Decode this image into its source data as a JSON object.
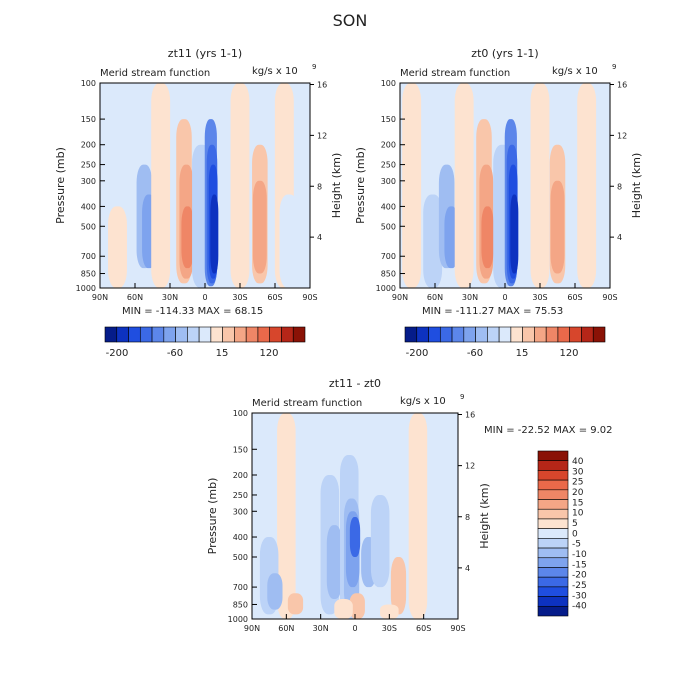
{
  "figure": {
    "title": "SON"
  },
  "palette": {
    "neg": [
      "#dbe9fb",
      "#bcd3f7",
      "#9fbdf2",
      "#7ea3ee",
      "#5c86ea",
      "#3b69e6",
      "#1f4ee0",
      "#0d32c0",
      "#051c8a"
    ],
    "pos": [
      "#fde3d0",
      "#f9c6aa",
      "#f4a686",
      "#ef8666",
      "#e9694a",
      "#d7462c",
      "#b52618",
      "#8a1206"
    ]
  },
  "chart_data": [
    {
      "type": "contour",
      "title": "zt11 (yrs 1-1)",
      "label_left": "Merid stream function",
      "label_right": "kg/s x 10",
      "label_right_exp": "9",
      "xlabel": "",
      "ylabel": "Pressure (mb)",
      "ylabel_right": "Height (km)",
      "x_ticks": [
        "90N",
        "60N",
        "30N",
        "0",
        "30S",
        "60S",
        "90S"
      ],
      "y_ticks": [
        "100",
        "150",
        "200",
        "250",
        "300",
        "400",
        "500",
        "700",
        "850",
        "1000"
      ],
      "y_ticks_right": [
        "16",
        "12",
        "8",
        "4"
      ],
      "stats": {
        "min_label": "MIN =",
        "min": "-114.33",
        "max_label": "MAX =",
        "max": "68.15"
      },
      "colorbar": {
        "orientation": "horizontal",
        "labels": [
          "-200",
          "-60",
          "15",
          "120"
        ]
      },
      "cells": [
        {
          "lat": 75,
          "p": [
            100,
            400
          ],
          "level": 0
        },
        {
          "lat": 75,
          "p": [
            400,
            1000
          ],
          "level": 1
        },
        {
          "lat": 55,
          "p": [
            100,
            1000
          ],
          "level": 0
        },
        {
          "lat": 52,
          "p": [
            250,
            800
          ],
          "level": -2
        },
        {
          "lat": 48,
          "p": [
            350,
            800
          ],
          "level": -3
        },
        {
          "lat": 38,
          "p": [
            100,
            1000
          ],
          "level": 1
        },
        {
          "lat": 18,
          "p": [
            150,
            950
          ],
          "level": 2
        },
        {
          "lat": 16,
          "p": [
            250,
            900
          ],
          "level": 3
        },
        {
          "lat": 15,
          "p": [
            400,
            800
          ],
          "level": 4
        },
        {
          "lat": 3,
          "p": [
            200,
            1000
          ],
          "level": -1
        },
        {
          "lat": -5,
          "p": [
            150,
            980
          ],
          "level": -4
        },
        {
          "lat": -6,
          "p": [
            200,
            950
          ],
          "level": -5
        },
        {
          "lat": -7,
          "p": [
            250,
            900
          ],
          "level": -6
        },
        {
          "lat": -8,
          "p": [
            350,
            850
          ],
          "level": -7
        },
        {
          "lat": -30,
          "p": [
            100,
            1000
          ],
          "level": 1
        },
        {
          "lat": -47,
          "p": [
            200,
            950
          ],
          "level": 2
        },
        {
          "lat": -47,
          "p": [
            300,
            850
          ],
          "level": 3
        },
        {
          "lat": -68,
          "p": [
            100,
            1000
          ],
          "level": 1
        },
        {
          "lat": -72,
          "p": [
            350,
            1000
          ],
          "level": 0
        }
      ]
    },
    {
      "type": "contour",
      "title": "zt0 (yrs 1-1)",
      "label_left": "Merid stream function",
      "label_right": "kg/s x 10",
      "label_right_exp": "9",
      "xlabel": "",
      "ylabel": "Pressure (mb)",
      "ylabel_right": "Height (km)",
      "x_ticks": [
        "90N",
        "60N",
        "30N",
        "0",
        "30S",
        "60S",
        "90S"
      ],
      "y_ticks": [
        "100",
        "150",
        "200",
        "250",
        "300",
        "400",
        "500",
        "700",
        "850",
        "1000"
      ],
      "y_ticks_right": [
        "16",
        "12",
        "8",
        "4"
      ],
      "stats": {
        "min_label": "MIN =",
        "min": "-111.27",
        "max_label": "MAX =",
        "max": "75.53"
      },
      "colorbar": {
        "orientation": "horizontal",
        "labels": [
          "-200",
          "-60",
          "15",
          "120"
        ]
      },
      "cells": [
        {
          "lat": 80,
          "p": [
            100,
            1000
          ],
          "level": 1
        },
        {
          "lat": 62,
          "p": [
            350,
            1000
          ],
          "level": -1
        },
        {
          "lat": 50,
          "p": [
            250,
            800
          ],
          "level": -2
        },
        {
          "lat": 46,
          "p": [
            400,
            800
          ],
          "level": -3
        },
        {
          "lat": 35,
          "p": [
            100,
            1000
          ],
          "level": 1
        },
        {
          "lat": 18,
          "p": [
            150,
            950
          ],
          "level": 2
        },
        {
          "lat": 16,
          "p": [
            250,
            900
          ],
          "level": 3
        },
        {
          "lat": 15,
          "p": [
            400,
            800
          ],
          "level": 4
        },
        {
          "lat": 2,
          "p": [
            200,
            1000
          ],
          "level": -1
        },
        {
          "lat": -5,
          "p": [
            150,
            980
          ],
          "level": -4
        },
        {
          "lat": -6,
          "p": [
            200,
            950
          ],
          "level": -5
        },
        {
          "lat": -7,
          "p": [
            250,
            900
          ],
          "level": -6
        },
        {
          "lat": -8,
          "p": [
            350,
            850
          ],
          "level": -7
        },
        {
          "lat": -30,
          "p": [
            100,
            1000
          ],
          "level": 1
        },
        {
          "lat": -45,
          "p": [
            200,
            950
          ],
          "level": 2
        },
        {
          "lat": -45,
          "p": [
            300,
            850
          ],
          "level": 3
        },
        {
          "lat": -70,
          "p": [
            100,
            1000
          ],
          "level": 1
        }
      ]
    },
    {
      "type": "contour",
      "title": "zt11 - zt0",
      "label_left": "Merid stream function",
      "label_right": "kg/s x 10",
      "label_right_exp": "9",
      "xlabel": "",
      "ylabel": "Pressure (mb)",
      "ylabel_right": "Height (km)",
      "x_ticks": [
        "90N",
        "60N",
        "30N",
        "0",
        "30S",
        "60S",
        "90S"
      ],
      "y_ticks": [
        "100",
        "150",
        "200",
        "250",
        "300",
        "400",
        "500",
        "700",
        "850",
        "1000"
      ],
      "y_ticks_right": [
        "16",
        "12",
        "8",
        "4"
      ],
      "stats": {
        "min_label": "MIN =",
        "min": "-22.52",
        "max_label": "MAX =",
        "max": "9.02"
      },
      "colorbar": {
        "orientation": "vertical",
        "labels": [
          "40",
          "30",
          "25",
          "20",
          "15",
          "10",
          "5",
          "0",
          "-5",
          "-10",
          "-15",
          "-20",
          "-25",
          "-30",
          "-40"
        ]
      },
      "cells": [
        {
          "lat": 60,
          "p": [
            100,
            1000
          ],
          "level": 1
        },
        {
          "lat": 75,
          "p": [
            400,
            950
          ],
          "level": -1
        },
        {
          "lat": 70,
          "p": [
            600,
            900
          ],
          "level": -2
        },
        {
          "lat": 52,
          "p": [
            750,
            950
          ],
          "level": 2
        },
        {
          "lat": 22,
          "p": [
            200,
            950
          ],
          "level": -1
        },
        {
          "lat": 18,
          "p": [
            350,
            800
          ],
          "level": -2
        },
        {
          "lat": 5,
          "p": [
            160,
            1000
          ],
          "level": -1
        },
        {
          "lat": 3,
          "p": [
            260,
            900
          ],
          "level": -2
        },
        {
          "lat": 2,
          "p": [
            300,
            700
          ],
          "level": -3
        },
        {
          "lat": 0,
          "p": [
            320,
            500
          ],
          "level": -5
        },
        {
          "lat": -2,
          "p": [
            750,
            1000
          ],
          "level": 2
        },
        {
          "lat": -12,
          "p": [
            400,
            700
          ],
          "level": -2
        },
        {
          "lat": -22,
          "p": [
            250,
            700
          ],
          "level": -1
        },
        {
          "lat": -38,
          "p": [
            500,
            950
          ],
          "level": 2
        },
        {
          "lat": -55,
          "p": [
            100,
            1000
          ],
          "level": 1
        },
        {
          "lat": -30,
          "p": [
            850,
            1000
          ],
          "level": 1
        },
        {
          "lat": 10,
          "p": [
            800,
            1000
          ],
          "level": 1
        }
      ]
    }
  ]
}
